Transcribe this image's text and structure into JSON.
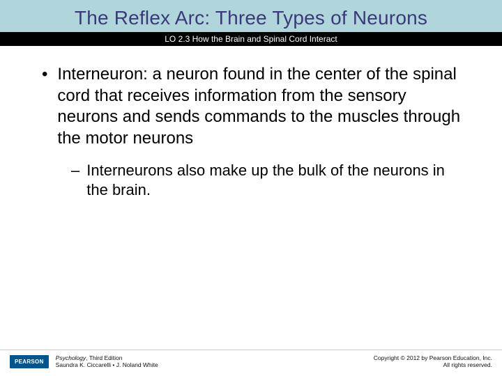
{
  "colors": {
    "header_band": "#b0d6dc",
    "title_text": "#3a3a7a",
    "lo_band_bg": "#000000",
    "lo_text": "#ffffff",
    "body_text": "#000000",
    "footer_border": "#c9c9c9",
    "pearson_bg": "#00558c",
    "pearson_text": "#ffffff"
  },
  "title": "The Reflex Arc: Three Types of Neurons",
  "lo_text": "LO 2.3 How the Brain and Spinal Cord Interact",
  "bullets": [
    {
      "text": "Interneuron: a neuron found in the center of the spinal cord that receives information from the sensory neurons and sends commands to the muscles through the motor neurons",
      "children": [
        "Interneurons also make up the bulk of the neurons in the brain."
      ]
    }
  ],
  "footer": {
    "logo_text": "PEARSON",
    "book_title": "Psychology",
    "edition": ", Third Edition",
    "authors": "Saundra K. Ciccarelli • J. Noland White",
    "copyright_line1": "Copyright © 2012 by Pearson Education, Inc.",
    "copyright_line2": "All rights reserved."
  }
}
